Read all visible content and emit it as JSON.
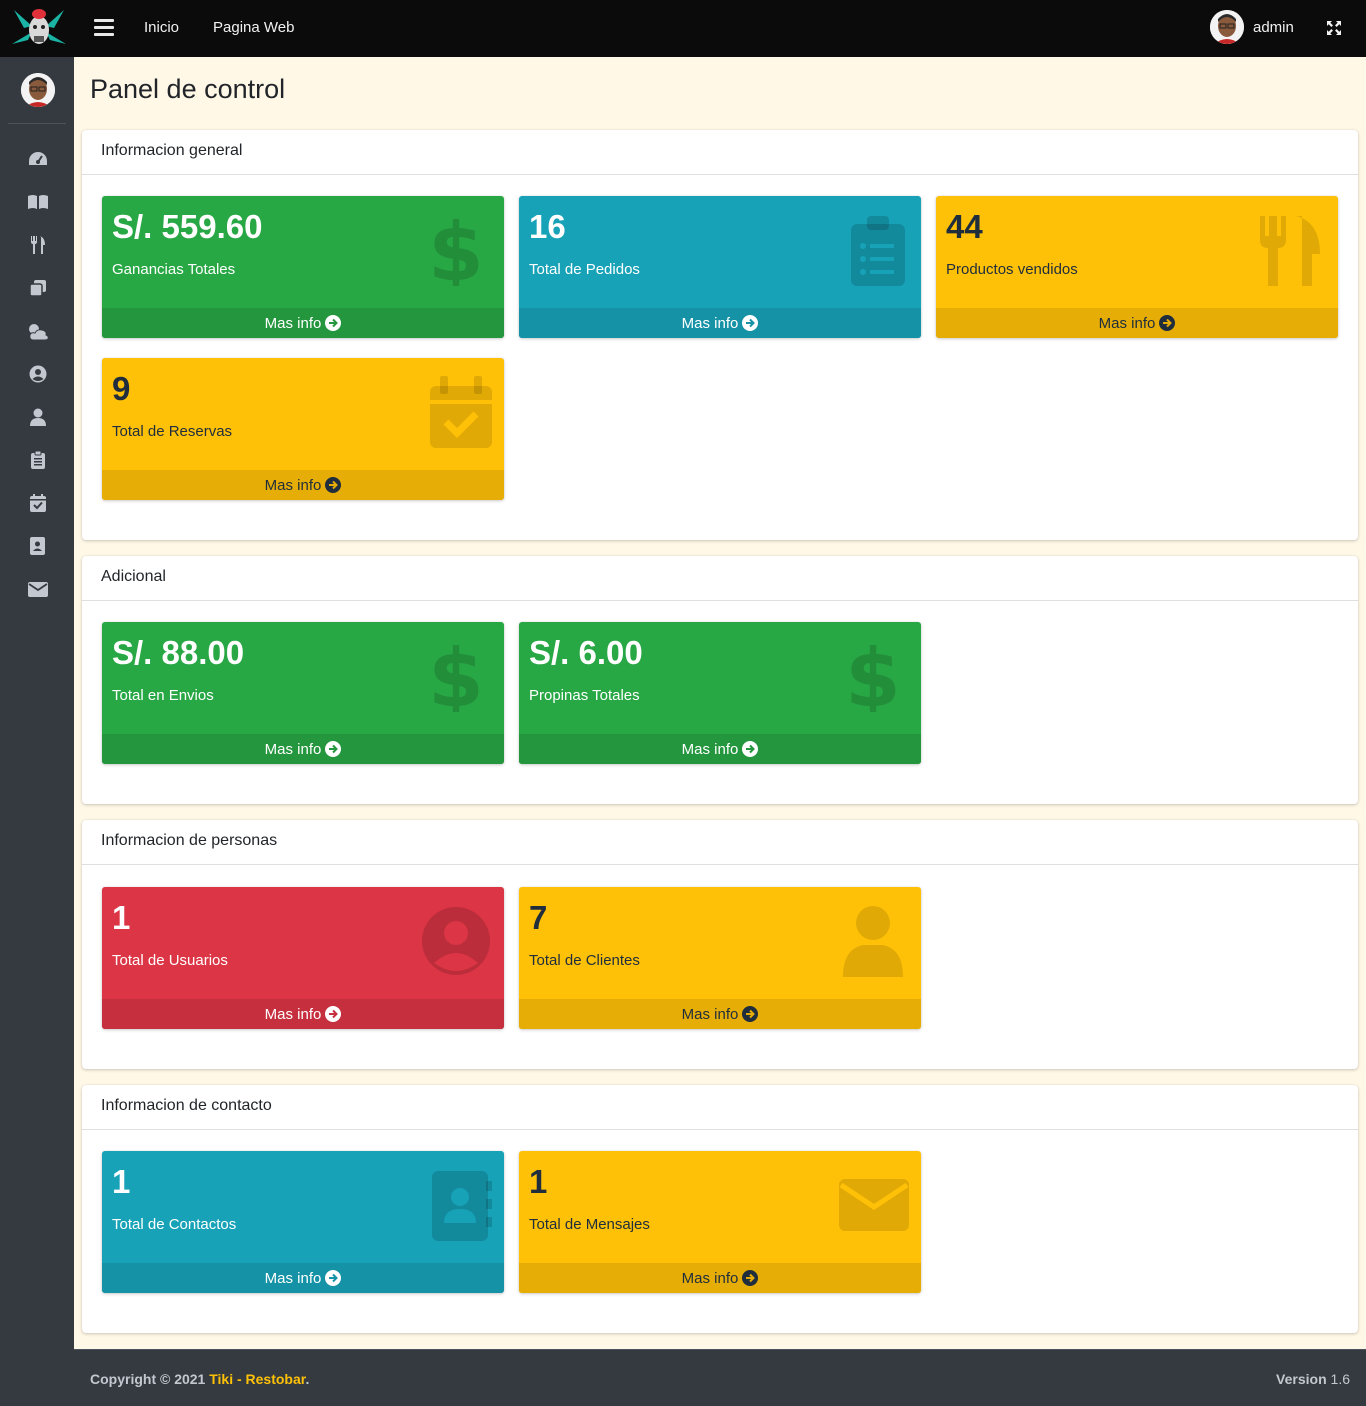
{
  "navbar": {
    "links": [
      "Inicio",
      "Pagina Web"
    ],
    "user": "admin"
  },
  "sidebar": {
    "icons": [
      "dashboard-icon",
      "book-icon",
      "utensils-icon",
      "copy-icon",
      "weather-icon",
      "user-circle-icon",
      "user-icon",
      "clipboard-icon",
      "calendar-check-icon",
      "address-book-icon",
      "envelope-icon"
    ]
  },
  "page": {
    "title": "Panel de control"
  },
  "sections": {
    "general": {
      "title": "Informacion general",
      "boxes": [
        {
          "value": "S/. 559.60",
          "label": "Ganancias Totales",
          "color": "green",
          "icon": "dollar-icon",
          "link": "Mas info"
        },
        {
          "value": "16",
          "label": "Total de Pedidos",
          "color": "teal",
          "icon": "clipboard-list-icon",
          "link": "Mas info"
        },
        {
          "value": "44",
          "label": "Productos vendidos",
          "color": "yellow",
          "icon": "utensils-icon",
          "link": "Mas info"
        },
        {
          "value": "9",
          "label": "Total de Reservas",
          "color": "yellow",
          "icon": "calendar-check-icon",
          "link": "Mas info"
        }
      ]
    },
    "adicional": {
      "title": "Adicional",
      "boxes": [
        {
          "value": "S/. 88.00",
          "label": "Total en Envios",
          "color": "green",
          "icon": "dollar-icon",
          "link": "Mas info"
        },
        {
          "value": "S/. 6.00",
          "label": "Propinas Totales",
          "color": "green",
          "icon": "dollar-icon",
          "link": "Mas info"
        }
      ]
    },
    "personas": {
      "title": "Informacion de personas",
      "boxes": [
        {
          "value": "1",
          "label": "Total de Usuarios",
          "color": "red",
          "icon": "user-circle-icon",
          "link": "Mas info"
        },
        {
          "value": "7",
          "label": "Total de Clientes",
          "color": "yellow",
          "icon": "user-icon",
          "link": "Mas info"
        }
      ]
    },
    "contacto": {
      "title": "Informacion de contacto",
      "boxes": [
        {
          "value": "1",
          "label": "Total de Contactos",
          "color": "teal",
          "icon": "address-book-icon",
          "link": "Mas info"
        },
        {
          "value": "1",
          "label": "Total de Mensajes",
          "color": "yellow",
          "icon": "envelope-icon",
          "link": "Mas info"
        }
      ]
    }
  },
  "footer": {
    "copyright": "Copyright © 2021",
    "brand": "Tiki - Restobar",
    "period": ".",
    "version_label": "Version",
    "version": "1.6"
  },
  "colors": {
    "green": "#28a745",
    "teal": "#17a2b8",
    "yellow": "#ffc107",
    "red": "#dc3545",
    "sidebar": "#343a40",
    "navbar": "#0b0b0b"
  }
}
